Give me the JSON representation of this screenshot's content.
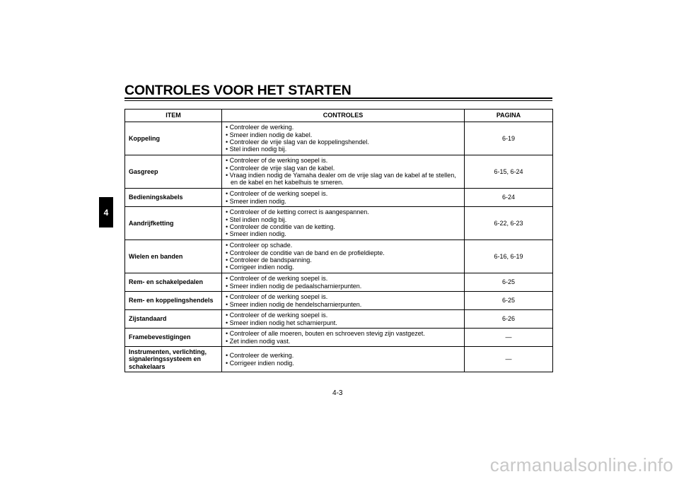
{
  "title": "CONTROLES VOOR HET STARTEN",
  "chapter_tab": "4",
  "headers": {
    "item": "ITEM",
    "controles": "CONTROLES",
    "pagina": "PAGINA"
  },
  "rows": [
    {
      "item": "Koppeling",
      "checks": [
        "Controleer de werking.",
        "Smeer indien nodig de kabel.",
        "Controleer de vrije slag van de koppelingshendel.",
        "Stel indien nodig bij."
      ],
      "page": "6-19",
      "h": 47
    },
    {
      "item": "Gasgreep",
      "checks": [
        "Controleer of de werking soepel is.",
        "Controleer de vrije slag van de kabel.",
        "Vraag indien nodig de Yamaha dealer om de vrije slag van de kabel af te stellen, en de kabel en het kabelhuis te smeren."
      ],
      "page": "6-15, 6-24",
      "h": 47
    },
    {
      "item": "Bedieningskabels",
      "checks": [
        "Controleer of de werking soepel is.",
        "Smeer indien nodig."
      ],
      "page": "6-24",
      "h": 26
    },
    {
      "item": "Aandrijfketting",
      "checks": [
        "Controleer of de ketting correct is aangespannen.",
        "Stel indien nodig bij.",
        "Controleer de conditie van de ketting.",
        "Smeer indien nodig."
      ],
      "page": "6-22, 6-23",
      "h": 47
    },
    {
      "item": "Wielen en banden",
      "checks": [
        "Controleer op schade.",
        "Controleer de conditie van de band en de profieldiepte.",
        "Controleer de bandspanning.",
        "Corrigeer indien nodig."
      ],
      "page": "6-16, 6-19",
      "h": 47
    },
    {
      "item": "Rem- en schakelpedalen",
      "checks": [
        "Controleer of de werking soepel is.",
        "Smeer indien nodig de pedaalscharnierpunten."
      ],
      "page": "6-25",
      "h": 26
    },
    {
      "item": "Rem- en koppelingshendels",
      "checks": [
        "Controleer of de werking soepel is.",
        "Smeer indien nodig de hendelscharnierpunten."
      ],
      "page": "6-25",
      "h": 26
    },
    {
      "item": "Zijstandaard",
      "checks": [
        "Controleer of de werking soepel is.",
        "Smeer indien nodig het scharnierpunt."
      ],
      "page": "6-26",
      "h": 26
    },
    {
      "item": "Framebevestigingen",
      "checks": [
        "Controleer of alle moeren, bouten en schroeven stevig zijn vastgezet.",
        "Zet indien nodig vast."
      ],
      "page": "—",
      "h": 26
    },
    {
      "item": "Instrumenten, verlichting, signaleringssysteem en schakelaars",
      "checks": [
        "Controleer de werking.",
        "Corrigeer indien nodig."
      ],
      "page": "—",
      "h": 36
    }
  ],
  "page_number": "4-3",
  "watermark": "carmanualsonline.info"
}
